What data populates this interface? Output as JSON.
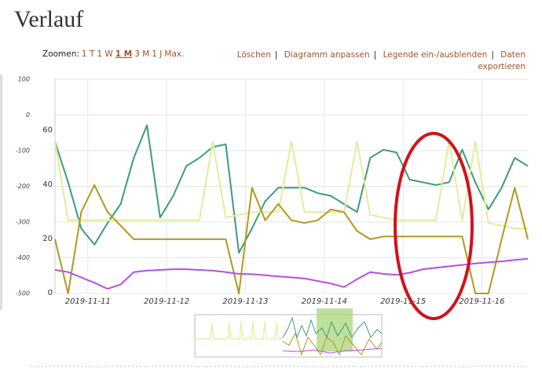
{
  "page_title": "Verlauf",
  "toolbar": {
    "zoom_label": "Zoomen:",
    "zoom_options": [
      "1 T",
      "1 W",
      "1 M",
      "3 M",
      "1 J",
      "Max."
    ],
    "selected_zoom": 2,
    "actions": [
      "Löschen",
      "Diagramm anpassen",
      "Legende ein-/ausblenden",
      "Daten exportieren"
    ],
    "separator": "|"
  },
  "chart_data": {
    "type": "line",
    "x": [
      "2019-11-10 14:00",
      "2019-11-10 18:00",
      "2019-11-10 22:00",
      "2019-11-11 02:00",
      "2019-11-11 06:00",
      "2019-11-11 10:00",
      "2019-11-11 14:00",
      "2019-11-11 18:00",
      "2019-11-11 22:00",
      "2019-11-12 02:00",
      "2019-11-12 06:00",
      "2019-11-12 10:00",
      "2019-11-12 14:00",
      "2019-11-12 18:00",
      "2019-11-12 22:00",
      "2019-11-13 02:00",
      "2019-11-13 06:00",
      "2019-11-13 10:00",
      "2019-11-13 14:00",
      "2019-11-13 18:00",
      "2019-11-13 22:00",
      "2019-11-14 02:00",
      "2019-11-14 06:00",
      "2019-11-14 10:00",
      "2019-11-14 14:00",
      "2019-11-14 18:00",
      "2019-11-14 22:00",
      "2019-11-15 02:00",
      "2019-11-15 06:00",
      "2019-11-15 10:00",
      "2019-11-15 14:00",
      "2019-11-15 18:00",
      "2019-11-15 22:00",
      "2019-11-16 02:00",
      "2019-11-16 06:00",
      "2019-11-16 10:00",
      "2019-11-16 14:00"
    ],
    "xlim": [
      "2019-11-10 14:00",
      "2019-11-16 14:00"
    ],
    "xticks": [
      "2019-11-11",
      "2019-11-12",
      "2019-11-13",
      "2019-11-14",
      "2019-11-15",
      "2019-11-16"
    ],
    "ylim": [
      -500,
      100
    ],
    "yticks": [
      -500,
      -400,
      -300,
      -200,
      -100,
      0,
      100
    ],
    "y2lim": [
      0,
      79
    ],
    "y2ticks": [
      0,
      20,
      40,
      60
    ],
    "grid": true,
    "series": [
      {
        "color": "#3d9c7a",
        "axis": "y2",
        "values": [
          56,
          41,
          24,
          18,
          26,
          33,
          50,
          62,
          28,
          36,
          47,
          50,
          54,
          55,
          15,
          24,
          34,
          39,
          39,
          39,
          37,
          36,
          33,
          30,
          50,
          53,
          52,
          42,
          41,
          40,
          41,
          53,
          41,
          31,
          39,
          50,
          47
        ]
      },
      {
        "color": "#e4ec9c",
        "axis": "y2",
        "values": [
          56,
          27,
          27,
          27,
          27,
          27,
          27,
          27,
          27,
          27,
          27,
          27,
          56,
          28,
          29,
          30,
          30,
          30,
          56,
          30,
          30,
          30,
          30,
          56,
          29,
          28,
          27,
          27,
          27,
          27,
          56,
          27,
          56,
          26,
          25,
          24,
          24
        ]
      },
      {
        "color": "#b09a1c",
        "axis": "y2",
        "values": [
          20,
          0,
          30,
          40,
          30,
          25,
          20,
          20,
          20,
          20,
          20,
          20,
          20,
          20,
          0,
          39,
          27,
          33,
          27,
          26,
          27,
          31,
          30,
          23,
          20,
          21,
          21,
          21,
          21,
          21,
          21,
          21,
          0,
          0,
          20,
          39,
          20
        ]
      },
      {
        "color": "#b54fdf",
        "values": [
          -434,
          -440,
          -455,
          -470,
          -487,
          -475,
          -440,
          -436,
          -434,
          -432,
          -432,
          -434,
          -436,
          -440,
          -445,
          -446,
          -449,
          -452,
          -455,
          -458,
          -465,
          -472,
          -482,
          -460,
          -440,
          -445,
          -448,
          -442,
          -432,
          -428,
          -424,
          -420,
          -416,
          -413,
          -410,
          -406,
          -403
        ]
      }
    ]
  }
}
